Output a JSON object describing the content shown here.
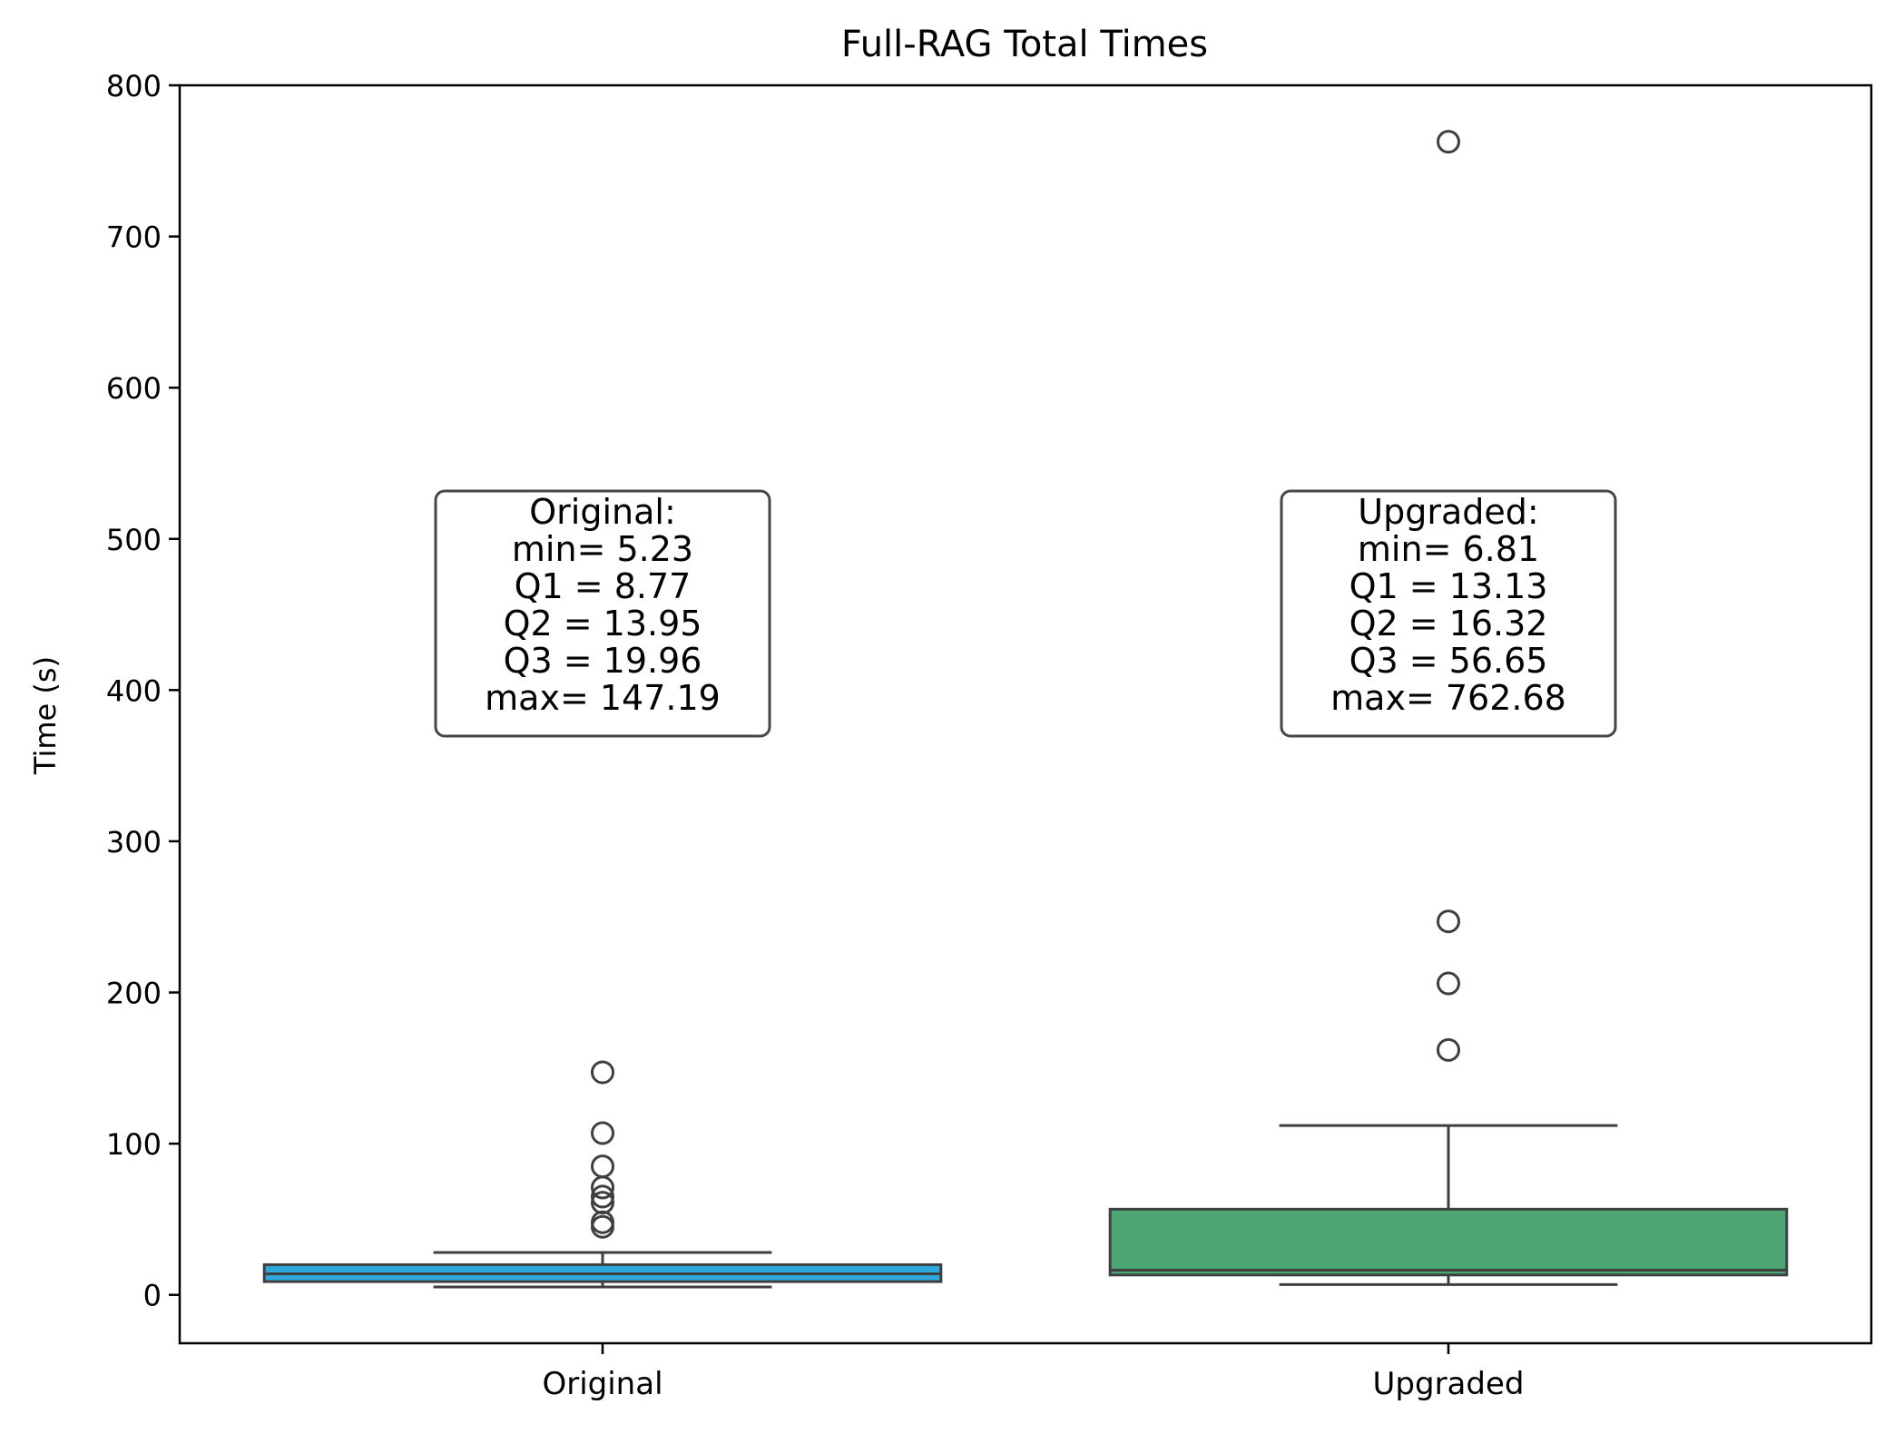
{
  "chart_data": {
    "type": "box",
    "title": "Full-RAG Total Times",
    "xlabel": "",
    "ylabel": "Time (s)",
    "ylim": [
      -32,
      800
    ],
    "yticks": [
      0,
      100,
      200,
      300,
      400,
      500,
      600,
      700,
      800
    ],
    "categories": [
      "Original",
      "Upgraded"
    ],
    "series": [
      {
        "category": "Original",
        "color": "#2ea8dc",
        "whisker_low": 5.23,
        "q1": 8.77,
        "median": 13.95,
        "q3": 19.96,
        "whisker_high": 28,
        "outliers": [
          147.19,
          107,
          85,
          71,
          65,
          61,
          48,
          45
        ],
        "stats_label": [
          "Original:",
          "min= 5.23",
          "Q1 = 8.77",
          "Q2 = 13.95",
          "Q3 = 19.96",
          "max= 147.19"
        ]
      },
      {
        "category": "Upgraded",
        "color": "#4ca673",
        "whisker_low": 6.81,
        "q1": 13.13,
        "median": 16.32,
        "q3": 56.65,
        "whisker_high": 112,
        "outliers": [
          762.68,
          247,
          206,
          162
        ],
        "stats_label": [
          "Upgraded:",
          "min= 6.81",
          "Q1 = 13.13",
          "Q2 = 16.32",
          "Q3 = 56.65",
          "max= 762.68"
        ]
      }
    ],
    "grid": false,
    "legend": "none"
  }
}
